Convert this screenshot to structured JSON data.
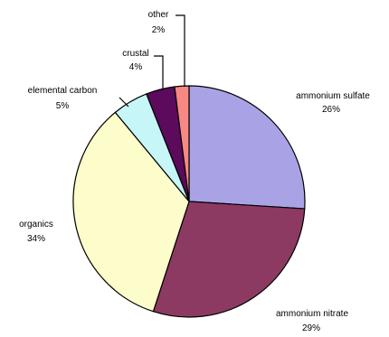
{
  "chart_data": {
    "type": "pie",
    "start_angle": "12 o'clock",
    "direction": "clockwise",
    "slices": [
      {
        "name": "ammonium sulfate",
        "pct_label": "26%",
        "value": 26,
        "color": "#a9a3e6"
      },
      {
        "name": "ammonium nitrate",
        "pct_label": "29%",
        "value": 29,
        "color": "#8c3a61"
      },
      {
        "name": "organics",
        "pct_label": "34%",
        "value": 34,
        "color": "#fdfccb"
      },
      {
        "name": "elemental carbon",
        "pct_label": "5%",
        "value": 5,
        "color": "#c6f6f7"
      },
      {
        "name": "crustal",
        "pct_label": "4%",
        "value": 4,
        "color": "#5b0a5c"
      },
      {
        "name": "other",
        "pct_label": "2%",
        "value": 2,
        "color": "#f78883"
      }
    ]
  }
}
